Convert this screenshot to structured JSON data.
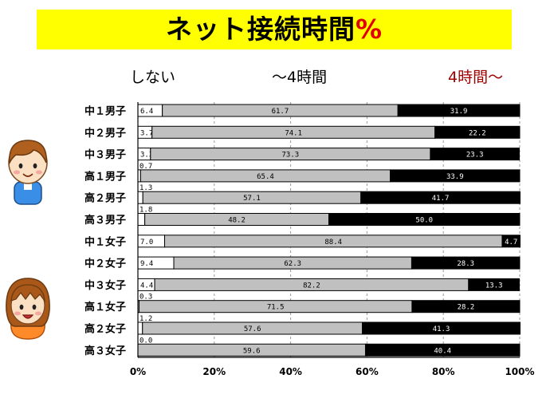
{
  "title": {
    "text": "ネット接続時間",
    "suffix": "%"
  },
  "legend": [
    "しない",
    "〜4時間",
    "4時間〜"
  ],
  "colors": {
    "title_bg": "#ffff00",
    "none": "#ffffff",
    "under4": "#c0c0c0",
    "over4": "#000000",
    "label_over4": "#a00000"
  },
  "chart_data": {
    "type": "bar",
    "orientation": "horizontal",
    "stacked": true,
    "percent": true,
    "categories": [
      "中１男子",
      "中２男子",
      "中３男子",
      "高１男子",
      "高２男子",
      "高３男子",
      "中１女子",
      "中２女子",
      "中３女子",
      "高１女子",
      "高２女子",
      "高３女子"
    ],
    "series": [
      {
        "name": "しない",
        "values": [
          6.4,
          3.7,
          3.3,
          0.7,
          1.3,
          1.8,
          7.0,
          9.4,
          4.4,
          0.3,
          1.2,
          0.0
        ],
        "labels": [
          "6.4",
          "3.7",
          "3.3",
          "0.7",
          "1.3",
          "1.8",
          "7.0",
          "9.4",
          "4.4",
          "0.3",
          "1.2",
          "0.0"
        ]
      },
      {
        "name": "〜4時間",
        "values": [
          61.7,
          74.1,
          73.3,
          65.4,
          57.1,
          48.2,
          88.4,
          62.3,
          82.2,
          71.5,
          57.6,
          59.6
        ],
        "labels": [
          "61.7",
          "74.1",
          "73.3",
          "65.4",
          "57.1",
          "48.2",
          "88.4",
          "62.3",
          "82.2",
          "71.5",
          "57.6",
          "59.6"
        ]
      },
      {
        "name": "4時間〜",
        "values": [
          31.9,
          22.2,
          23.3,
          33.9,
          41.7,
          50.0,
          4.7,
          28.3,
          13.3,
          28.2,
          41.3,
          40.4
        ],
        "labels": [
          "31.9",
          "22.2",
          "23.3",
          "33.9",
          "41.7",
          "50.0",
          "4.7",
          "28.3",
          "13.3",
          "28.2",
          "41.3",
          "40.4"
        ]
      }
    ],
    "xlim": [
      0,
      100
    ],
    "xticks": [
      "0%",
      "20%",
      "40%",
      "60%",
      "80%",
      "100%"
    ],
    "grid": true,
    "legend_position": "top"
  },
  "illustrations": {
    "boy": "boy-face-icon",
    "girl": "girl-face-icon"
  }
}
